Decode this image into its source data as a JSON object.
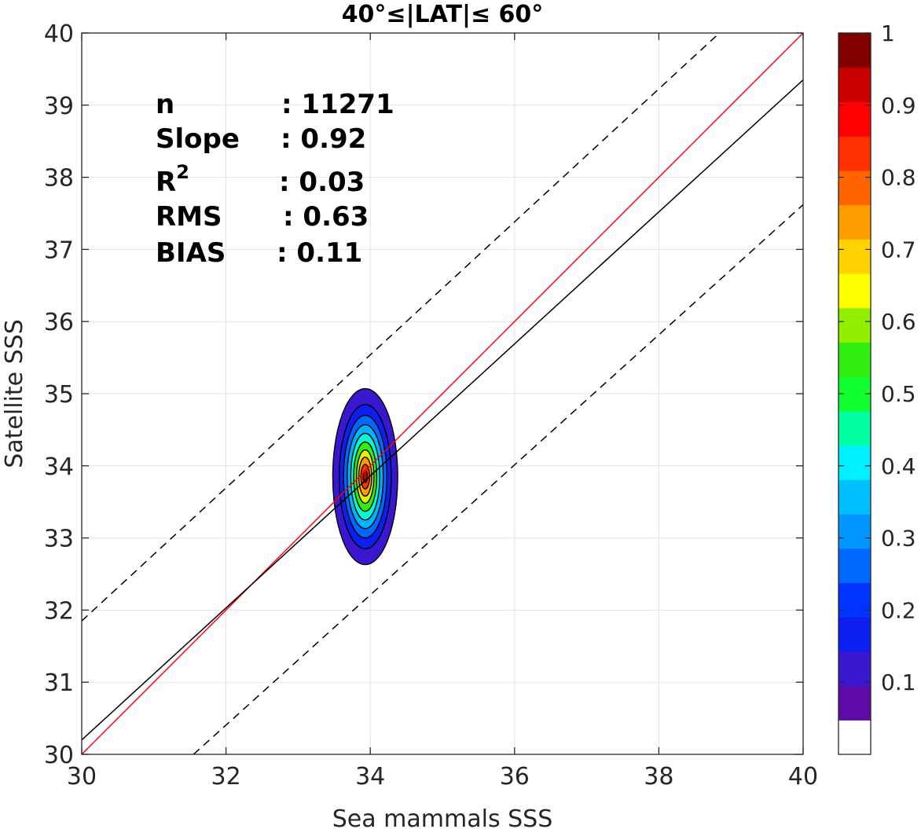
{
  "chart_data": {
    "type": "contour",
    "title": "40°≤|LAT|≤ 60°",
    "xlabel": "Sea mammals SSS",
    "ylabel": "Satellite SSS",
    "xlim": [
      30,
      40
    ],
    "ylim": [
      30,
      40
    ],
    "xticks": [
      30,
      32,
      34,
      36,
      38,
      40
    ],
    "yticks": [
      30,
      31,
      32,
      33,
      34,
      35,
      36,
      37,
      38,
      39,
      40
    ],
    "grid": true,
    "stats": [
      {
        "label": "n",
        "value": ": 11271"
      },
      {
        "label": "Slope",
        "value": ": 0.92"
      },
      {
        "label": "R",
        "sup": "2",
        "value": ": 0.03"
      },
      {
        "label": "RMS",
        "value": ": 0.63"
      },
      {
        "label": "BIAS",
        "value": ": 0.11"
      }
    ],
    "lines": [
      {
        "role": "one-to-one",
        "color": "#ff0000",
        "dash": false,
        "x": [
          30,
          40
        ],
        "y": [
          30,
          40
        ]
      },
      {
        "role": "regression",
        "color": "#000000",
        "dash": false,
        "x": [
          30,
          40
        ],
        "y": [
          30.2,
          39.35
        ]
      },
      {
        "role": "upper-bound",
        "color": "#000000",
        "dash": true,
        "x": [
          30,
          38.84
        ],
        "y": [
          31.85,
          40
        ]
      },
      {
        "role": "lower-bound",
        "color": "#000000",
        "dash": true,
        "x": [
          31.55,
          40
        ],
        "y": [
          30,
          37.62
        ]
      }
    ],
    "density": {
      "center": [
        33.93,
        33.85
      ],
      "levels": [
        0.05,
        0.15,
        0.25,
        0.35,
        0.45,
        0.55,
        0.65,
        0.75,
        0.85,
        0.95
      ],
      "contours": [
        {
          "level": 0.05,
          "color": "#3a17cf",
          "rx": 0.45,
          "ry": 1.22
        },
        {
          "level": 0.15,
          "color": "#0d1ff0",
          "rx": 0.36,
          "ry": 1.0
        },
        {
          "level": 0.25,
          "color": "#0068ff",
          "rx": 0.3,
          "ry": 0.85
        },
        {
          "level": 0.35,
          "color": "#00b3ff",
          "rx": 0.25,
          "ry": 0.72
        },
        {
          "level": 0.45,
          "color": "#00ffd0",
          "rx": 0.2,
          "ry": 0.6
        },
        {
          "level": 0.55,
          "color": "#30ee10",
          "rx": 0.16,
          "ry": 0.48
        },
        {
          "level": 0.65,
          "color": "#e8f000",
          "rx": 0.12,
          "ry": 0.37
        },
        {
          "level": 0.75,
          "color": "#ff9e00",
          "rx": 0.09,
          "ry": 0.27
        },
        {
          "level": 0.85,
          "color": "#ff3000",
          "rx": 0.06,
          "ry": 0.17
        },
        {
          "level": 0.95,
          "color": "#c00000",
          "rx": 0.03,
          "ry": 0.08
        }
      ]
    },
    "colorbar": {
      "min": 0,
      "max": 1,
      "ticks": [
        0.1,
        0.2,
        0.3,
        0.4,
        0.5,
        0.6,
        0.7,
        0.8,
        0.9,
        1
      ],
      "tick_labels": [
        "0.1",
        "0.2",
        "0.3",
        "0.4",
        "0.5",
        "0.6",
        "0.7",
        "0.8",
        "0.9",
        "1"
      ],
      "colors": [
        "#ffffff",
        "#5e0aa8",
        "#3a17cf",
        "#0d1ff0",
        "#0033ff",
        "#0068ff",
        "#0095ff",
        "#00bfff",
        "#00f0ff",
        "#00ffa0",
        "#10ff30",
        "#30ee10",
        "#90f000",
        "#ffff00",
        "#ffd200",
        "#ff9e00",
        "#ff6400",
        "#ff3000",
        "#ff0000",
        "#c80000",
        "#800000"
      ]
    }
  }
}
